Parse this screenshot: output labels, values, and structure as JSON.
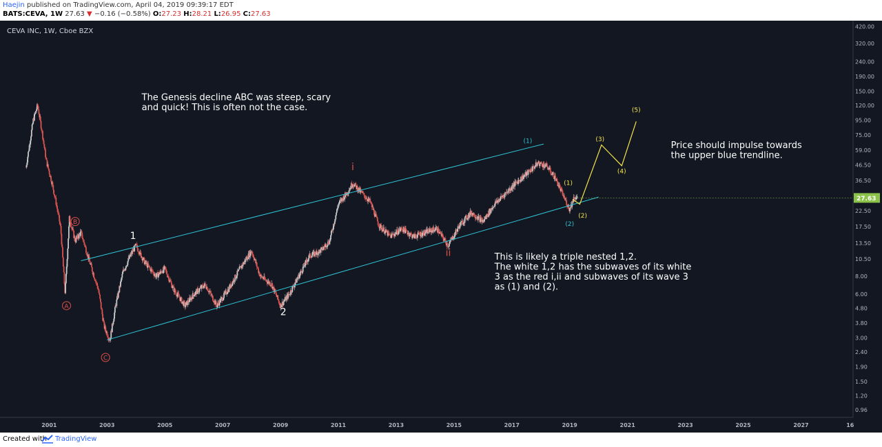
{
  "header": {
    "author": "Haejin",
    "published": " published on TradingView.com, April 04, 2019 09:39:17 EDT",
    "symbol": "BATS:CEVA, 1W",
    "last": "27.63",
    "change": "−0.16 (−0.58%)",
    "o_label": "O:",
    "o_value": "27.23",
    "h_label": "H:",
    "h_value": "28.21",
    "l_label": "L:",
    "l_value": "26.95",
    "c_label": "C:",
    "c_value": "27.63"
  },
  "footer": {
    "created_with": "Created with",
    "brand": "TradingView"
  },
  "colors": {
    "background": "#131722",
    "candle_up": "#c9c9c9",
    "candle_down": "#d9534f",
    "trendline": "#2ec5d6",
    "projection": "#f5e44a",
    "wave_red": "#e0504a",
    "price_badge": "#8bc34a",
    "axis_text": "#b2b5be"
  },
  "chart_data": {
    "type": "candlestick",
    "title": "CEVA INC, 1W, Cboe BZX",
    "scale": "log",
    "ylim": [
      0.85,
      460
    ],
    "xlim": [
      1999.3,
      2028.8
    ],
    "grid": false,
    "y_ticks": [
      "420.00",
      "320.00",
      "240.00",
      "190.00",
      "150.00",
      "120.00",
      "95.00",
      "75.00",
      "59.00",
      "46.50",
      "36.50",
      "27.63",
      "22.50",
      "17.50",
      "13.50",
      "10.50",
      "8.00",
      "6.00",
      "4.80",
      "3.80",
      "3.00",
      "2.40",
      "1.90",
      "1.50",
      "1.20",
      "0.96"
    ],
    "y_tick_values": [
      420,
      320,
      240,
      190,
      150,
      120,
      95,
      75,
      59,
      46.5,
      36.5,
      27.63,
      22.5,
      17.5,
      13.5,
      10.5,
      8,
      6,
      4.8,
      3.8,
      3,
      2.4,
      1.9,
      1.5,
      1.2,
      0.96
    ],
    "x_ticks": [
      "2001",
      "2003",
      "2005",
      "2007",
      "2009",
      "2011",
      "2013",
      "2015",
      "2017",
      "2019",
      "2021",
      "2023",
      "2025",
      "2027",
      "16"
    ],
    "x_tick_values": [
      2001,
      2003,
      2005,
      2007,
      2009,
      2011,
      2013,
      2015,
      2017,
      2019,
      2021,
      2023,
      2025,
      2027,
      2028.7
    ],
    "last_price": 27.63,
    "price_path": [
      {
        "x": 2000.2,
        "y": 45
      },
      {
        "x": 2000.45,
        "y": 95
      },
      {
        "x": 2000.6,
        "y": 120
      },
      {
        "x": 2000.75,
        "y": 80
      },
      {
        "x": 2000.9,
        "y": 50
      },
      {
        "x": 2001.1,
        "y": 35
      },
      {
        "x": 2001.25,
        "y": 25
      },
      {
        "x": 2001.4,
        "y": 17
      },
      {
        "x": 2001.55,
        "y": 6.1
      },
      {
        "x": 2001.7,
        "y": 20
      },
      {
        "x": 2001.9,
        "y": 14
      },
      {
        "x": 2002.1,
        "y": 16
      },
      {
        "x": 2002.4,
        "y": 10
      },
      {
        "x": 2002.7,
        "y": 6.5
      },
      {
        "x": 2002.9,
        "y": 3.6
      },
      {
        "x": 2003.1,
        "y": 2.9
      },
      {
        "x": 2003.3,
        "y": 5
      },
      {
        "x": 2003.55,
        "y": 8.5
      },
      {
        "x": 2003.8,
        "y": 11
      },
      {
        "x": 2004.0,
        "y": 13
      },
      {
        "x": 2004.3,
        "y": 10
      },
      {
        "x": 2004.7,
        "y": 8
      },
      {
        "x": 2005.0,
        "y": 9
      },
      {
        "x": 2005.3,
        "y": 6.5
      },
      {
        "x": 2005.7,
        "y": 5
      },
      {
        "x": 2006.0,
        "y": 6
      },
      {
        "x": 2006.4,
        "y": 7
      },
      {
        "x": 2006.8,
        "y": 5
      },
      {
        "x": 2007.2,
        "y": 6.5
      },
      {
        "x": 2007.6,
        "y": 9
      },
      {
        "x": 2008.0,
        "y": 12
      },
      {
        "x": 2008.3,
        "y": 8
      },
      {
        "x": 2008.7,
        "y": 7
      },
      {
        "x": 2009.0,
        "y": 5
      },
      {
        "x": 2009.3,
        "y": 6
      },
      {
        "x": 2009.7,
        "y": 8.5
      },
      {
        "x": 2010.0,
        "y": 11
      },
      {
        "x": 2010.4,
        "y": 12
      },
      {
        "x": 2010.7,
        "y": 14
      },
      {
        "x": 2011.0,
        "y": 25
      },
      {
        "x": 2011.3,
        "y": 30
      },
      {
        "x": 2011.5,
        "y": 35
      },
      {
        "x": 2011.8,
        "y": 30
      },
      {
        "x": 2012.1,
        "y": 26
      },
      {
        "x": 2012.4,
        "y": 18
      },
      {
        "x": 2012.8,
        "y": 15
      },
      {
        "x": 2013.2,
        "y": 17
      },
      {
        "x": 2013.6,
        "y": 15
      },
      {
        "x": 2014.0,
        "y": 16
      },
      {
        "x": 2014.4,
        "y": 17
      },
      {
        "x": 2014.8,
        "y": 13
      },
      {
        "x": 2015.2,
        "y": 18
      },
      {
        "x": 2015.6,
        "y": 22
      },
      {
        "x": 2016.0,
        "y": 19
      },
      {
        "x": 2016.4,
        "y": 25
      },
      {
        "x": 2016.8,
        "y": 30
      },
      {
        "x": 2017.2,
        "y": 36
      },
      {
        "x": 2017.6,
        "y": 42
      },
      {
        "x": 2017.9,
        "y": 48
      },
      {
        "x": 2018.2,
        "y": 46
      },
      {
        "x": 2018.5,
        "y": 38
      },
      {
        "x": 2018.8,
        "y": 28
      },
      {
        "x": 2019.0,
        "y": 23
      },
      {
        "x": 2019.15,
        "y": 28
      },
      {
        "x": 2019.26,
        "y": 27.63
      }
    ],
    "trendlines": [
      {
        "from": {
          "x": 2002.1,
          "y": 10.2
        },
        "to": {
          "x": 2018.1,
          "y": 65
        }
      },
      {
        "from": {
          "x": 2003.0,
          "y": 2.9
        },
        "to": {
          "x": 2020.0,
          "y": 28
        }
      }
    ],
    "projection": [
      {
        "x": 2019.1,
        "y": 27
      },
      {
        "x": 2019.35,
        "y": 25
      },
      {
        "x": 2020.1,
        "y": 64
      },
      {
        "x": 2020.8,
        "y": 46
      },
      {
        "x": 2021.3,
        "y": 93
      }
    ],
    "annotations": [
      {
        "text": "A",
        "x": 2001.6,
        "y": 5.0,
        "color": "red",
        "circle": true
      },
      {
        "text": "B",
        "x": 2001.9,
        "y": 19,
        "color": "red",
        "circle": true
      },
      {
        "text": "C",
        "x": 2002.95,
        "y": 2.2,
        "color": "red",
        "circle": true
      },
      {
        "text": "1",
        "x": 2003.9,
        "y": 14.4,
        "color": "white"
      },
      {
        "text": "2",
        "x": 2009.1,
        "y": 4.3,
        "color": "white"
      },
      {
        "text": "i",
        "x": 2011.5,
        "y": 43,
        "color": "red"
      },
      {
        "text": "ii",
        "x": 2014.8,
        "y": 11,
        "color": "red"
      },
      {
        "text": "(1)",
        "x": 2017.55,
        "y": 66,
        "color": "cyan"
      },
      {
        "text": "(2)",
        "x": 2019.0,
        "y": 17.7,
        "color": "cyan"
      },
      {
        "text": "(1)",
        "x": 2018.95,
        "y": 34,
        "color": "yellow"
      },
      {
        "text": "(2)",
        "x": 2019.45,
        "y": 20.2,
        "color": "yellow"
      },
      {
        "text": "(3)",
        "x": 2020.05,
        "y": 68,
        "color": "yellow"
      },
      {
        "text": "(4)",
        "x": 2020.8,
        "y": 41,
        "color": "yellow"
      },
      {
        "text": "(5)",
        "x": 2021.3,
        "y": 108,
        "color": "yellow"
      }
    ],
    "notes": [
      {
        "lines": [
          "The Genesis decline ABC was steep, scary",
          "and quick! This is often not the case."
        ],
        "x": 2004.2,
        "y": 130
      },
      {
        "lines": [
          "Price should impulse towards",
          "the upper blue trendline."
        ],
        "x": 2022.5,
        "y": 61
      },
      {
        "lines": [
          "This is likely a triple nested 1,2.",
          "The white 1,2 has the subwaves of its white",
          "3 as the red i,ii and subwaves of its wave 3",
          "as (1) and (2)."
        ],
        "x": 2016.4,
        "y": 10.4
      }
    ]
  }
}
